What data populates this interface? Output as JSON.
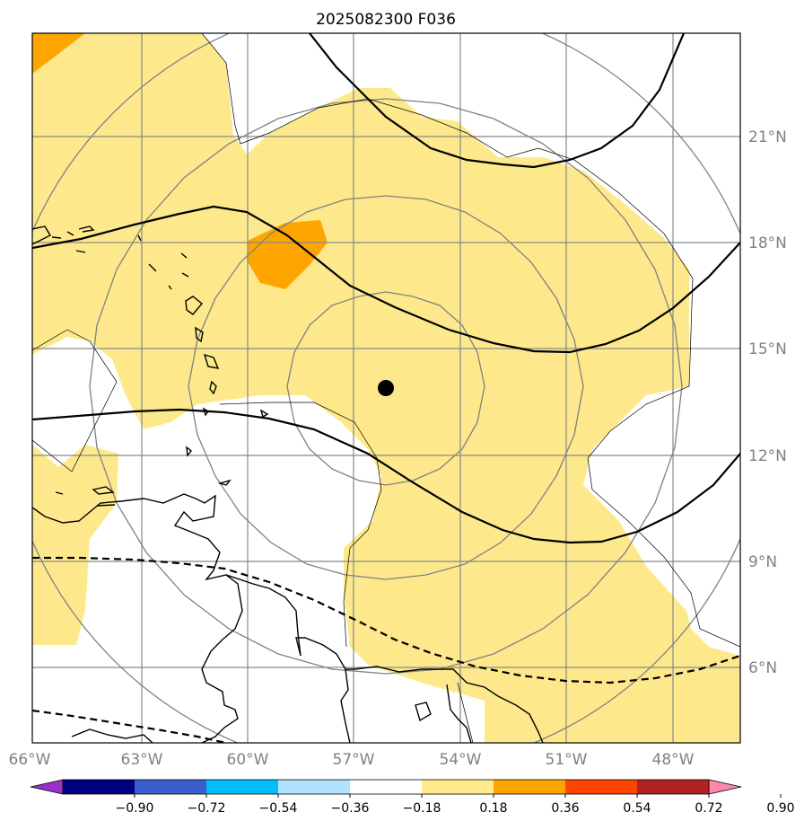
{
  "title": "2025082300 F036",
  "map": {
    "lon_range": [
      -66,
      -46.8
    ],
    "lat_range": [
      3.9,
      23.8
    ],
    "center_marker": {
      "lon": -56.0,
      "lat": 13.9
    },
    "lon_ticks": [
      {
        "value": -66,
        "label": "66°W"
      },
      {
        "value": -63,
        "label": "63°W"
      },
      {
        "value": -60,
        "label": "60°W"
      },
      {
        "value": -57,
        "label": "57°W"
      },
      {
        "value": -54,
        "label": "54°W"
      },
      {
        "value": -51,
        "label": "51°W"
      },
      {
        "value": -48,
        "label": "48°W"
      }
    ],
    "lat_ticks": [
      {
        "value": 21,
        "label": "21°N"
      },
      {
        "value": 18,
        "label": "18°N"
      },
      {
        "value": 15,
        "label": "15°N"
      },
      {
        "value": 12,
        "label": "12°N"
      },
      {
        "value": 9,
        "label": "9°N"
      },
      {
        "value": 6,
        "label": "6°N"
      }
    ],
    "gridlines": true,
    "range_rings": true,
    "field_colors": {
      "0.18-0.36": "#fde98c",
      "0.36-0.54": "#ffa500"
    }
  },
  "colorbar": {
    "extend": "both",
    "colors": [
      "#9932cc",
      "#000080",
      "#3a5fcd",
      "#00bfff",
      "#b0e2ff",
      "#ffffff",
      "#ffeb8c",
      "#ffa500",
      "#ff4500",
      "#b22222",
      "#ff88aa"
    ],
    "ticks": [
      "−0.90",
      "−0.72",
      "−0.54",
      "−0.36",
      "−0.18",
      "0.18",
      "0.36",
      "0.54",
      "0.72",
      "0.90"
    ]
  }
}
